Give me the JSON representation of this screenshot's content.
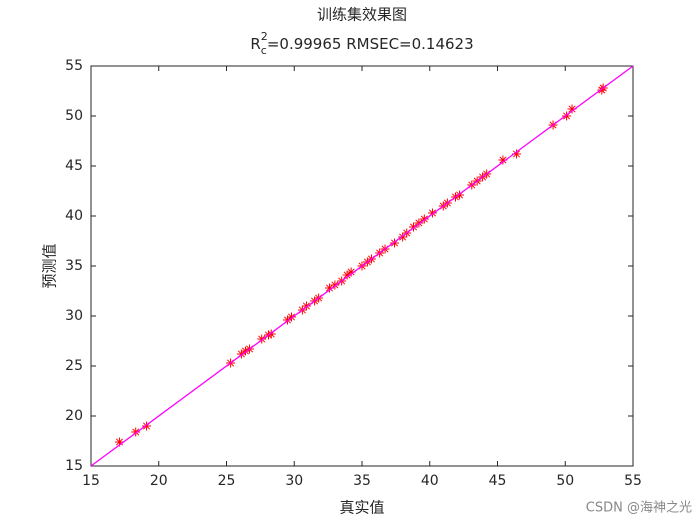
{
  "chart_data": {
    "type": "scatter",
    "title": "训练集效果图",
    "subtitle": {
      "base": "R",
      "sub": "c",
      "sup": "2",
      "rest": "=0.99965  RMSEC=0.14623"
    },
    "x_label": "真实值",
    "y_label": "预测值",
    "xlim": [
      15,
      55
    ],
    "ylim": [
      15,
      55
    ],
    "xticks": [
      15,
      20,
      25,
      30,
      35,
      40,
      45,
      50,
      55
    ],
    "yticks": [
      15,
      20,
      25,
      30,
      35,
      40,
      45,
      50,
      55
    ],
    "grid": false,
    "series": [
      {
        "color": "#ff0000",
        "marker": "asterisk",
        "x": [
          17.1,
          18.3,
          19.1,
          25.3,
          26.1,
          26.4,
          26.7,
          27.6,
          28.1,
          28.3,
          29.5,
          29.8,
          30.6,
          30.9,
          31.5,
          31.8,
          32.6,
          33.0,
          33.5,
          33.9,
          34.2,
          35.0,
          35.4,
          35.7,
          36.3,
          36.7,
          37.4,
          38.0,
          38.3,
          38.8,
          39.2,
          39.6,
          40.2,
          41.0,
          41.3,
          41.9,
          42.2,
          43.1,
          43.5,
          43.9,
          44.2,
          45.4,
          46.4,
          49.1,
          50.1,
          50.5,
          52.7,
          52.8
        ],
        "values": [
          17.4,
          18.4,
          19.0,
          25.3,
          26.2,
          26.5,
          26.7,
          27.7,
          28.1,
          28.2,
          29.6,
          29.9,
          30.6,
          31.0,
          31.5,
          31.8,
          32.8,
          33.1,
          33.5,
          34.1,
          34.4,
          35.0,
          35.4,
          35.7,
          36.3,
          36.7,
          37.3,
          37.9,
          38.3,
          38.9,
          39.3,
          39.7,
          40.3,
          41.0,
          41.3,
          41.9,
          42.1,
          43.1,
          43.5,
          43.9,
          44.2,
          45.6,
          46.2,
          49.1,
          50.0,
          50.7,
          52.6,
          52.8
        ]
      },
      {
        "color": "#ff00ff",
        "marker": "line",
        "x": [
          15,
          55
        ],
        "values": [
          15,
          55
        ]
      }
    ],
    "watermark": "CSDN @海神之光"
  }
}
